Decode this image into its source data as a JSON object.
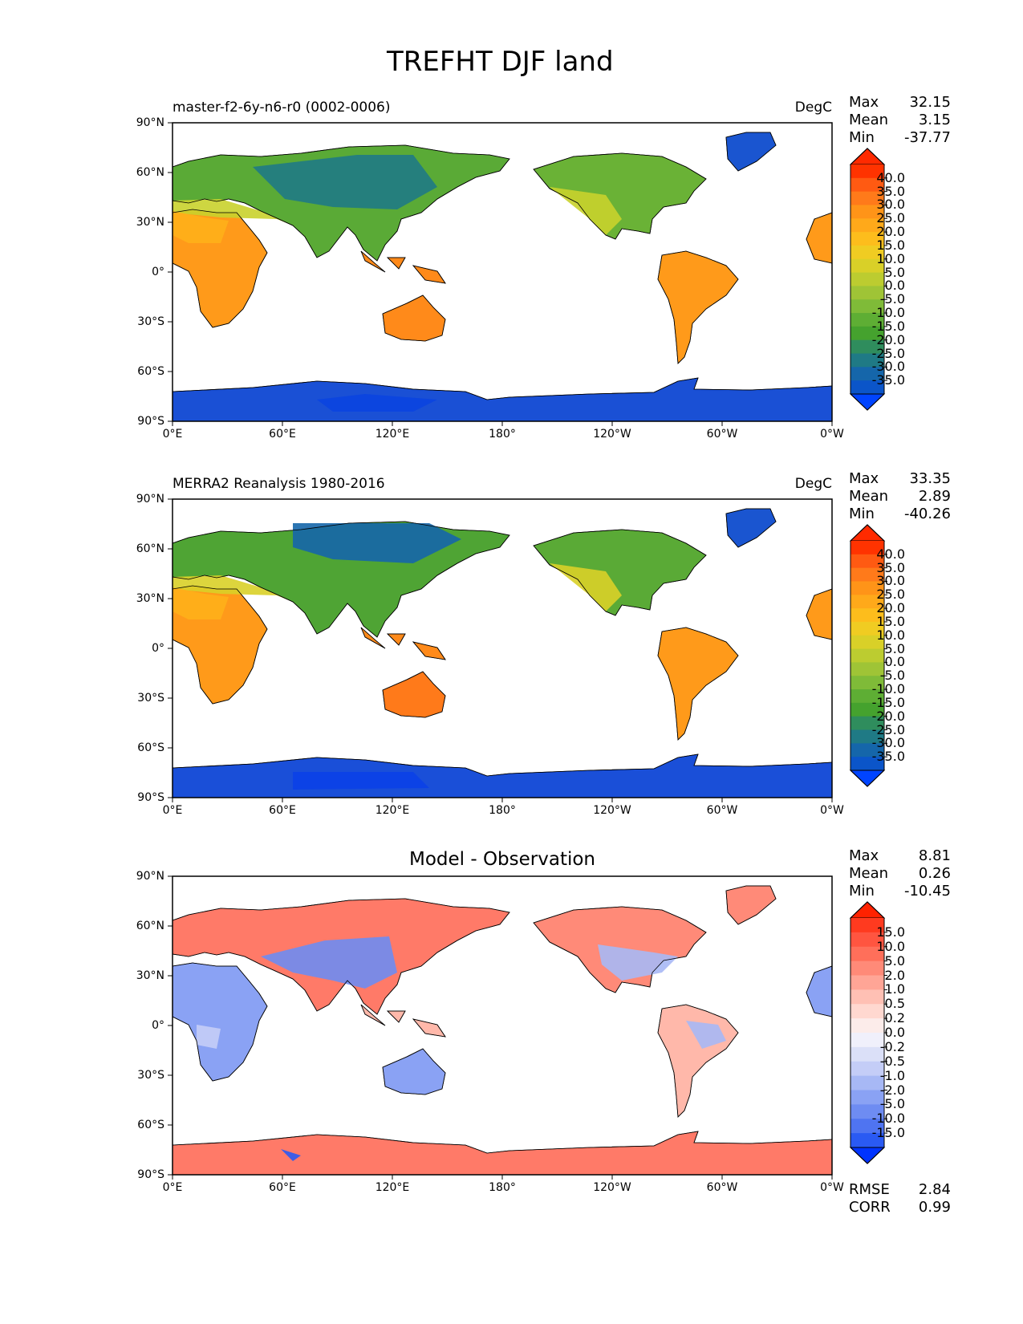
{
  "figure": {
    "title": "TREFHT DJF land"
  },
  "lat_ticks": [
    "90°N",
    "60°N",
    "30°N",
    "0°",
    "30°S",
    "60°S",
    "90°S"
  ],
  "lon_ticks": [
    "0°E",
    "60°E",
    "120°E",
    "180°",
    "120°W",
    "60°W",
    "0°W"
  ],
  "panels": [
    {
      "id": "model",
      "left_title": "master-f2-6y-n6-r0 (0002-0006)",
      "center_title": "",
      "units": "DegC",
      "stats": {
        "max_label": "Max",
        "max": "32.15",
        "mean_label": "Mean",
        "mean": "3.15",
        "min_label": "Min",
        "min": "-37.77"
      },
      "colorbar": {
        "labels": [
          "40.0",
          "35.0",
          "30.0",
          "25.0",
          "20.0",
          "15.0",
          "10.0",
          "5.0",
          "0.0",
          "-5.0",
          "-10.0",
          "-15.0",
          "-20.0",
          "-25.0",
          "-30.0",
          "-35.0"
        ],
        "colors": [
          "#ff3300",
          "#ff5a12",
          "#ff7a1a",
          "#ff9418",
          "#ffa91a",
          "#fdbd1c",
          "#f0cc22",
          "#d9d028",
          "#bccc30",
          "#9fc436",
          "#7fbb38",
          "#5eae34",
          "#45a22e",
          "#2f8d5d",
          "#1f7a85",
          "#1566aa",
          "#0b55c9"
        ],
        "overflow_high": "#ff2a00",
        "overflow_low": "#0044ff"
      }
    },
    {
      "id": "obs",
      "left_title": "MERRA2 Reanalysis 1980-2016",
      "center_title": "",
      "units": "DegC",
      "stats": {
        "max_label": "Max",
        "max": "33.35",
        "mean_label": "Mean",
        "mean": "2.89",
        "min_label": "Min",
        "min": "-40.26"
      },
      "colorbar": {
        "labels": [
          "40.0",
          "35.0",
          "30.0",
          "25.0",
          "20.0",
          "15.0",
          "10.0",
          "5.0",
          "0.0",
          "-5.0",
          "-10.0",
          "-15.0",
          "-20.0",
          "-25.0",
          "-30.0",
          "-35.0"
        ],
        "colors": [
          "#ff3300",
          "#ff5a12",
          "#ff7a1a",
          "#ff9418",
          "#ffa91a",
          "#fdbd1c",
          "#f0cc22",
          "#d9d028",
          "#bccc30",
          "#9fc436",
          "#7fbb38",
          "#5eae34",
          "#45a22e",
          "#2f8d5d",
          "#1f7a85",
          "#1566aa",
          "#0b55c9"
        ],
        "overflow_high": "#ff2a00",
        "overflow_low": "#0044ff"
      }
    },
    {
      "id": "diff",
      "left_title": "",
      "center_title": "Model - Observation",
      "units": "",
      "stats": {
        "max_label": "Max",
        "max": "8.81",
        "mean_label": "Mean",
        "mean": "0.26",
        "min_label": "Min",
        "min": "-10.45"
      },
      "colorbar": {
        "labels": [
          "15.0",
          "10.0",
          "5.0",
          "2.0",
          "1.0",
          "0.5",
          "0.2",
          "0.0",
          "-0.2",
          "-0.5",
          "-1.0",
          "-2.0",
          "-5.0",
          "-10.0",
          "-15.0"
        ],
        "colors": [
          "#ff3a1f",
          "#ff5540",
          "#ff6f5a",
          "#ff8a78",
          "#ffa596",
          "#ffc0b4",
          "#ffd8d0",
          "#fcecea",
          "#f0f0fb",
          "#dbe0f8",
          "#c4cdf7",
          "#a7b8f5",
          "#8aa2f4",
          "#6e8cf2",
          "#4f74f1",
          "#2a5af3"
        ],
        "overflow_high": "#ff2200",
        "overflow_low": "#0033ff"
      },
      "metrics": {
        "rmse_label": "RMSE",
        "rmse": "2.84",
        "corr_label": "CORR",
        "corr": "0.99"
      }
    }
  ]
}
